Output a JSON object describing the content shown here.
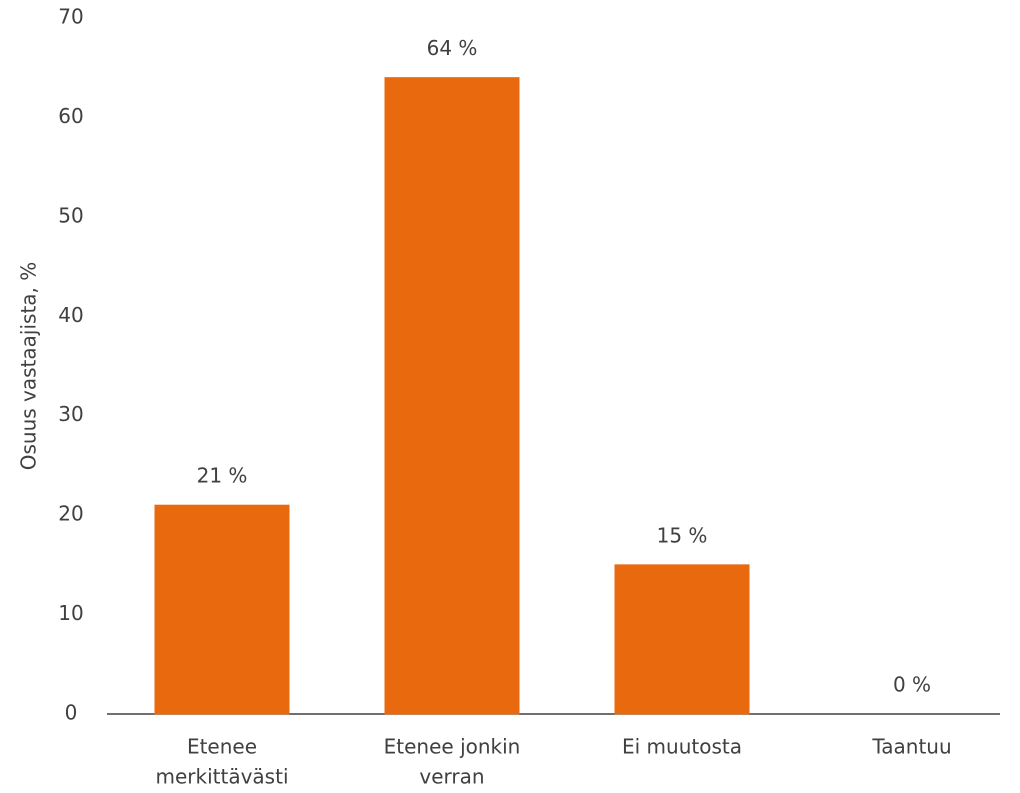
{
  "chart_data": {
    "type": "bar",
    "y_label": "Osuus vastaajista, %",
    "categories": [
      [
        "Etenee",
        "merkittävästi"
      ],
      [
        "Etenee jonkin",
        "verran"
      ],
      [
        "Ei muutosta"
      ],
      [
        "Taantuu"
      ]
    ],
    "values": [
      21,
      64,
      15,
      0
    ],
    "value_labels": [
      "21 %",
      "64 %",
      "15 %",
      "0 %"
    ],
    "color": "#e8690e",
    "ylim": [
      0,
      70
    ],
    "yticks": [
      0,
      10,
      20,
      30,
      40,
      50,
      60,
      70
    ],
    "grid": false
  }
}
